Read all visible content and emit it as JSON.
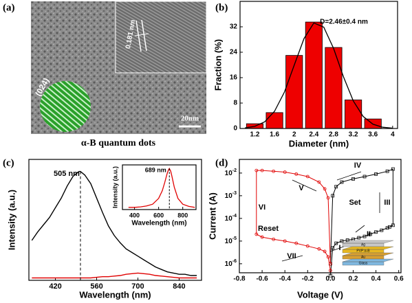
{
  "figure_a": {
    "panel": "(a)",
    "lattice_spacing": "0.181 nm",
    "plane": "(024)",
    "scale_bar": "20nm",
    "caption": "α-B quantum dots"
  },
  "chart_data": [
    {
      "type": "bar",
      "panel": "(b)",
      "annotation": "D=2.46±0.4 nm",
      "xlabel": "Diameter (nm)",
      "ylabel": "Fraction (%)",
      "x": [
        1.2,
        1.6,
        2.0,
        2.4,
        2.8,
        3.2,
        3.6
      ],
      "values": [
        1.5,
        5,
        23,
        33.5,
        25.5,
        9,
        3
      ],
      "color": "#ee0000",
      "fit": {
        "x": [
          1.0,
          1.2,
          1.4,
          1.6,
          1.8,
          2.0,
          2.2,
          2.4,
          2.6,
          2.8,
          3.0,
          3.2,
          3.4,
          3.6,
          3.8,
          4.0
        ],
        "values": [
          0.17,
          0.66,
          2.09,
          5.4,
          11.4,
          19.9,
          28.3,
          33.2,
          31.9,
          25.2,
          16.3,
          8.7,
          3.8,
          1.35,
          0.4,
          0.1
        ],
        "color": "#000000"
      },
      "xlim": [
        0.9,
        4.1
      ],
      "xticks": [
        1.2,
        1.6,
        2.0,
        2.4,
        2.8,
        3.2,
        3.6,
        4.0
      ],
      "ylim": [
        0,
        40
      ],
      "yticks": [
        0,
        8,
        16,
        24,
        32
      ]
    },
    {
      "type": "line",
      "panel": "(c)",
      "xlabel": "Wavelength (nm)",
      "ylabel": "Intensity (a.u.)",
      "peak": 505,
      "peak_label": "505 nm",
      "x": [
        340,
        360,
        380,
        400,
        420,
        440,
        460,
        480,
        500,
        505,
        520,
        540,
        560,
        580,
        600,
        620,
        640,
        660,
        680,
        700,
        720,
        740,
        760,
        780,
        800,
        820,
        840,
        860,
        880,
        900
      ],
      "series": [
        {
          "color": "#000000",
          "values": [
            0.33,
            0.4,
            0.46,
            0.52,
            0.6,
            0.68,
            0.78,
            0.86,
            0.9,
            0.9,
            0.87,
            0.8,
            0.68,
            0.56,
            0.45,
            0.37,
            0.31,
            0.26,
            0.23,
            0.2,
            0.17,
            0.14,
            0.11,
            0.09,
            0.07,
            0.06,
            0.05,
            0.05,
            0.04,
            0.04
          ]
        },
        {
          "color": "#e00000",
          "values": [
            0.02,
            0.02,
            0.02,
            0.02,
            0.02,
            0.02,
            0.02,
            0.02,
            0.02,
            0.02,
            0.02,
            0.02,
            0.025,
            0.03,
            0.03,
            0.035,
            0.04,
            0.05,
            0.055,
            0.06,
            0.055,
            0.05,
            0.04,
            0.035,
            0.03,
            0.025,
            0.02,
            0.02,
            0.02,
            0.02
          ]
        }
      ],
      "xlim": [
        330,
        916
      ],
      "xticks": [
        420,
        560,
        700,
        840
      ],
      "ylim": [
        0,
        1
      ],
      "inset": {
        "xlabel": "Wavelength (nm)",
        "ylabel": "Intensity (a.u.)",
        "peak": 689,
        "peak_label": "689 nm",
        "color": "#e00000",
        "x": [
          350,
          400,
          450,
          500,
          550,
          600,
          630,
          650,
          670,
          680,
          689,
          700,
          710,
          730,
          760,
          800,
          850,
          900
        ],
        "values": [
          0.05,
          0.05,
          0.06,
          0.08,
          0.12,
          0.25,
          0.42,
          0.6,
          0.8,
          0.88,
          0.92,
          0.86,
          0.75,
          0.5,
          0.25,
          0.12,
          0.07,
          0.05
        ],
        "xlim": [
          300,
          910
        ],
        "xticks": [
          400,
          600,
          800
        ],
        "ylim": [
          0,
          1
        ]
      }
    },
    {
      "type": "line",
      "panel": "(d)",
      "xlabel": "Voltage (V)",
      "ylabel": "Current (A)",
      "log_y": true,
      "annotations": [
        "V",
        "IV",
        "VI",
        "Reset",
        "Set",
        "III",
        "II",
        "I",
        "VII"
      ],
      "device_layers": [
        "Ag",
        "PVP:α-B",
        "Au",
        "Glass"
      ],
      "series": [
        {
          "color": "#000000",
          "marker": "square",
          "x": [
            0.0,
            0.02,
            0.05,
            0.1,
            0.15,
            0.2,
            0.25,
            0.3,
            0.35,
            0.4,
            0.45,
            0.5,
            0.52,
            0.55,
            0.55,
            0.5,
            0.4,
            0.3,
            0.2,
            0.1,
            0.05,
            0.02,
            0.0
          ],
          "values": [
            3e-07,
            5e-06,
            8e-06,
            1e-05,
            1.1e-05,
            1.2e-05,
            1.4e-05,
            1.6e-05,
            2e-05,
            2.5e-05,
            3e-05,
            3.8e-05,
            4.2e-05,
            5e-05,
            0.015,
            0.012,
            0.009,
            0.007,
            0.0055,
            0.004,
            0.0025,
            0.001,
            1e-06
          ]
        },
        {
          "color": "#e00000",
          "marker": "circle",
          "x": [
            0.0,
            -0.02,
            -0.05,
            -0.1,
            -0.2,
            -0.3,
            -0.4,
            -0.5,
            -0.6,
            -0.65,
            -0.65,
            -0.6,
            -0.5,
            -0.4,
            -0.3,
            -0.2,
            -0.1,
            -0.05,
            -0.02,
            0.0
          ],
          "values": [
            1e-06,
            0.0008,
            0.002,
            0.004,
            0.007,
            0.009,
            0.011,
            0.012,
            0.013,
            0.013,
            2e-05,
            1.5e-05,
            1.2e-05,
            1e-05,
            8e-06,
            6e-06,
            4.5e-06,
            3.5e-06,
            2e-06,
            5e-07
          ]
        }
      ],
      "xlim": [
        -0.8,
        0.62
      ],
      "xticks": [
        -0.8,
        -0.6,
        -0.4,
        -0.2,
        {
          "value": 0.0,
          "label": "0.0"
        },
        0.2,
        0.4,
        0.6
      ],
      "ylim": [
        4e-07,
        0.04
      ],
      "yticks": [
        {
          "value": 1e-06,
          "label": "10-6"
        },
        {
          "value": 1e-05,
          "label": "10-5"
        },
        {
          "value": 0.0001,
          "label": "10-4"
        },
        {
          "value": 0.001,
          "label": "10-3"
        },
        {
          "value": 0.01,
          "label": "10-2"
        }
      ]
    }
  ]
}
